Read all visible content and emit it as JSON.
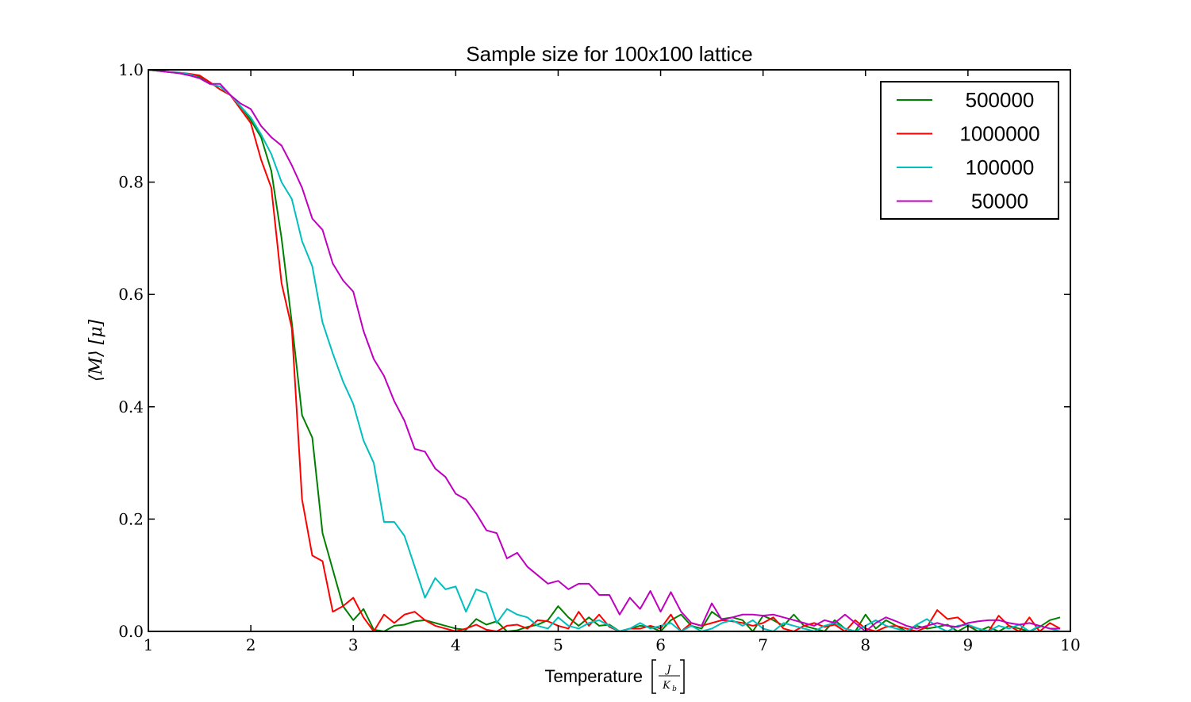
{
  "chart_data": {
    "type": "line",
    "title": "Sample size for 100x100 lattice",
    "xlabel": "Temperature",
    "xlabel_math": {
      "numerator": "J",
      "denominator": "K",
      "denominator_sub": "b"
    },
    "ylabel": "⟨M⟩ [μ]",
    "xlim": [
      1,
      10
    ],
    "ylim": [
      0.0,
      1.0
    ],
    "xticks": [
      "1",
      "2",
      "3",
      "4",
      "5",
      "6",
      "7",
      "8",
      "9",
      "10"
    ],
    "yticks": [
      "0.0",
      "0.2",
      "0.4",
      "0.6",
      "0.8",
      "1.0"
    ],
    "grid": false,
    "legend_position": "top-right",
    "x": [
      1.0,
      1.1,
      1.2,
      1.3,
      1.4,
      1.5,
      1.6,
      1.7,
      1.8,
      1.9,
      2.0,
      2.1,
      2.2,
      2.3,
      2.4,
      2.5,
      2.6,
      2.7,
      2.8,
      2.9,
      3.0,
      3.1,
      3.2,
      3.3,
      3.4,
      3.5,
      3.6,
      3.7,
      3.8,
      3.9,
      4.0,
      4.1,
      4.2,
      4.3,
      4.4,
      4.5,
      4.6,
      4.7,
      4.8,
      4.9,
      5.0,
      5.1,
      5.2,
      5.3,
      5.4,
      5.5,
      5.6,
      5.7,
      5.8,
      5.9,
      6.0,
      6.1,
      6.2,
      6.3,
      6.4,
      6.5,
      6.6,
      6.7,
      6.8,
      6.9,
      7.0,
      7.1,
      7.2,
      7.3,
      7.4,
      7.5,
      7.6,
      7.7,
      7.8,
      7.9,
      8.0,
      8.1,
      8.2,
      8.3,
      8.4,
      8.5,
      8.6,
      8.7,
      8.8,
      8.9,
      9.0,
      9.1,
      9.2,
      9.3,
      9.4,
      9.5,
      9.6,
      9.7,
      9.8,
      9.9
    ],
    "series": [
      {
        "name": "500000",
        "color": "#008000",
        "values": [
          1.0,
          0.998,
          0.996,
          0.994,
          0.99,
          0.988,
          0.975,
          0.97,
          0.955,
          0.935,
          0.91,
          0.88,
          0.82,
          0.7,
          0.55,
          0.385,
          0.345,
          0.175,
          0.11,
          0.045,
          0.02,
          0.04,
          0.003,
          0.0,
          0.01,
          0.012,
          0.018,
          0.02,
          0.015,
          0.01,
          0.005,
          0.003,
          0.022,
          0.012,
          0.018,
          0.0,
          0.002,
          0.008,
          0.012,
          0.02,
          0.045,
          0.025,
          0.01,
          0.025,
          0.01,
          0.012,
          0.0,
          0.005,
          0.01,
          0.008,
          0.0,
          0.02,
          0.03,
          0.01,
          0.005,
          0.035,
          0.022,
          0.025,
          0.02,
          0.0,
          0.028,
          0.02,
          0.01,
          0.03,
          0.01,
          0.005,
          0.0,
          0.02,
          0.005,
          0.0,
          0.03,
          0.005,
          0.02,
          0.01,
          0.0,
          0.01,
          0.005,
          0.008,
          0.012,
          0.0,
          0.01,
          0.0,
          0.008,
          0.0,
          0.01,
          0.005,
          0.0,
          0.008,
          0.02,
          0.025
        ]
      },
      {
        "name": "1000000",
        "color": "#ff0000",
        "values": [
          1.0,
          0.998,
          0.996,
          0.995,
          0.993,
          0.99,
          0.978,
          0.965,
          0.955,
          0.93,
          0.905,
          0.84,
          0.79,
          0.62,
          0.54,
          0.235,
          0.135,
          0.125,
          0.035,
          0.045,
          0.06,
          0.025,
          0.0,
          0.03,
          0.015,
          0.03,
          0.035,
          0.02,
          0.01,
          0.005,
          0.0,
          0.005,
          0.012,
          0.003,
          0.0,
          0.01,
          0.012,
          0.005,
          0.02,
          0.018,
          0.01,
          0.005,
          0.035,
          0.01,
          0.03,
          0.008,
          0.0,
          0.005,
          0.005,
          0.01,
          0.005,
          0.03,
          0.0,
          0.015,
          0.01,
          0.015,
          0.02,
          0.018,
          0.015,
          0.01,
          0.015,
          0.025,
          0.005,
          0.0,
          0.01,
          0.015,
          0.008,
          0.012,
          0.0,
          0.02,
          0.005,
          0.0,
          0.008,
          0.01,
          0.005,
          0.0,
          0.008,
          0.038,
          0.022,
          0.025,
          0.01,
          0.005,
          0.0,
          0.028,
          0.01,
          0.0,
          0.025,
          0.0,
          0.015,
          0.005
        ]
      },
      {
        "name": "100000",
        "color": "#00bfbf",
        "values": [
          1.0,
          0.998,
          0.996,
          0.995,
          0.992,
          0.985,
          0.975,
          0.97,
          0.955,
          0.935,
          0.915,
          0.885,
          0.85,
          0.8,
          0.77,
          0.695,
          0.65,
          0.55,
          0.495,
          0.445,
          0.405,
          0.34,
          0.3,
          0.195,
          0.195,
          0.17,
          0.115,
          0.06,
          0.095,
          0.075,
          0.08,
          0.035,
          0.075,
          0.068,
          0.015,
          0.04,
          0.03,
          0.025,
          0.01,
          0.005,
          0.025,
          0.01,
          0.005,
          0.015,
          0.02,
          0.01,
          0.0,
          0.005,
          0.015,
          0.005,
          0.01,
          0.015,
          0.0,
          0.01,
          0.0,
          0.005,
          0.015,
          0.02,
          0.01,
          0.02,
          0.005,
          0.0,
          0.015,
          0.01,
          0.005,
          0.0,
          0.01,
          0.015,
          0.005,
          0.0,
          0.01,
          0.02,
          0.01,
          0.005,
          0.0,
          0.012,
          0.022,
          0.008,
          0.0,
          0.01,
          0.012,
          0.005,
          0.0,
          0.01,
          0.005,
          0.012,
          0.0,
          0.01,
          0.005,
          0.0
        ]
      },
      {
        "name": "50000",
        "color": "#bf00bf",
        "values": [
          1.0,
          0.998,
          0.996,
          0.994,
          0.99,
          0.985,
          0.975,
          0.975,
          0.955,
          0.94,
          0.93,
          0.9,
          0.88,
          0.865,
          0.83,
          0.79,
          0.735,
          0.715,
          0.655,
          0.625,
          0.605,
          0.535,
          0.485,
          0.455,
          0.41,
          0.375,
          0.325,
          0.32,
          0.29,
          0.275,
          0.245,
          0.235,
          0.21,
          0.18,
          0.175,
          0.13,
          0.14,
          0.115,
          0.1,
          0.085,
          0.09,
          0.075,
          0.085,
          0.085,
          0.065,
          0.065,
          0.03,
          0.06,
          0.04,
          0.072,
          0.035,
          0.07,
          0.035,
          0.015,
          0.01,
          0.05,
          0.02,
          0.025,
          0.03,
          0.03,
          0.028,
          0.03,
          0.025,
          0.02,
          0.015,
          0.01,
          0.02,
          0.015,
          0.03,
          0.015,
          0.0,
          0.015,
          0.025,
          0.018,
          0.01,
          0.005,
          0.01,
          0.015,
          0.01,
          0.008,
          0.015,
          0.018,
          0.02,
          0.02,
          0.015,
          0.012,
          0.015,
          0.01,
          0.005,
          0.005
        ]
      }
    ]
  }
}
